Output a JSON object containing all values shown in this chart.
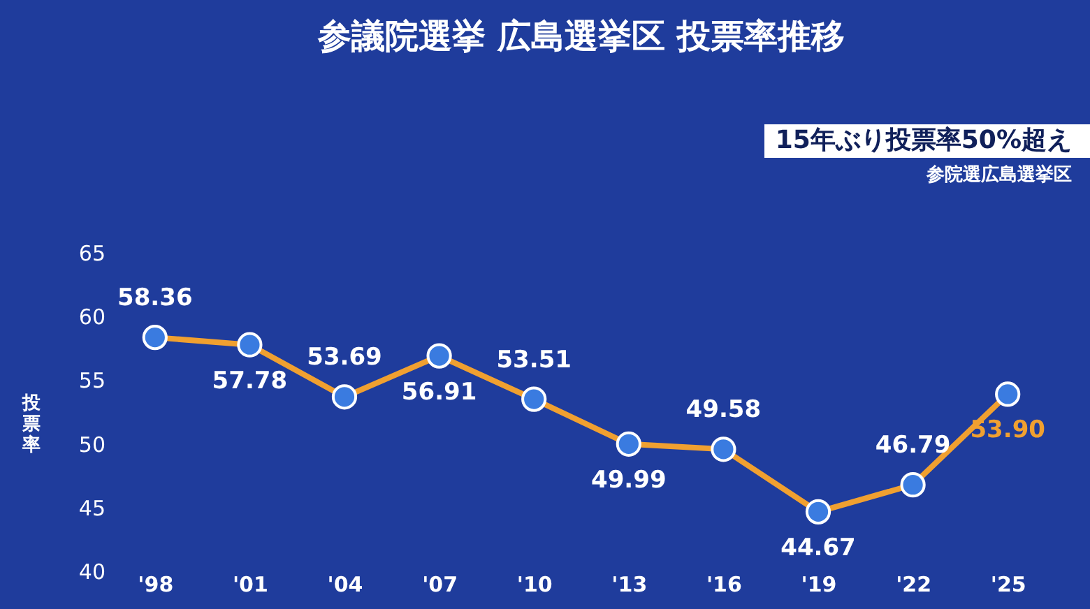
{
  "chart_data": {
    "type": "line",
    "title": "参議院選挙 広島選挙区 投票率推移",
    "ylabel": "投票率",
    "annotations": [
      "15年ぶり投票率50%超え",
      "参院選広島選挙区"
    ],
    "categories": [
      "'98",
      "'01",
      "'04",
      "'07",
      "'10",
      "'13",
      "'16",
      "'19",
      "'22",
      "'25"
    ],
    "series": [
      {
        "color": "#f0a030",
        "values": [
          58.36,
          57.78,
          53.69,
          56.91,
          53.51,
          49.99,
          49.58,
          44.67,
          46.79,
          53.9
        ]
      }
    ],
    "ylim": [
      40,
      65
    ],
    "yticks": [
      40,
      45,
      50,
      55,
      60,
      65
    ],
    "value_labels": [
      "58.36",
      "57.78",
      "53.69",
      "56.91",
      "53.51",
      "49.99",
      "49.58",
      "44.67",
      "46.79",
      "53.90"
    ],
    "marker": "circle",
    "line_style": "solid",
    "grid": false,
    "legend": false
  }
}
